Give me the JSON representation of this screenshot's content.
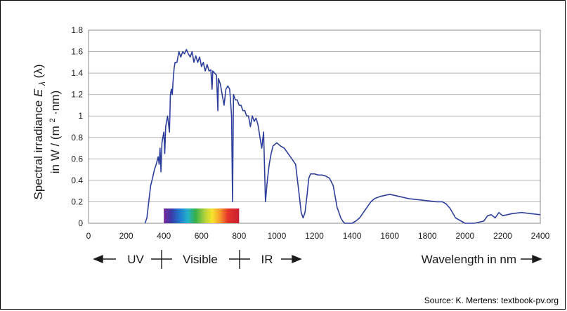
{
  "chart_data": {
    "type": "line",
    "title": "",
    "ylabel_line1": "Spectral irradiance",
    "ylabel_symbol": "E",
    "ylabel_subscript": "λ",
    "ylabel_arg": "(λ)",
    "ylabel_line2_pre": "in W / (m",
    "ylabel_line2_sup": "2",
    "ylabel_line2_post": "·nm)",
    "xlabel": "Wavelength in nm",
    "xlim": [
      0,
      2400
    ],
    "ylim": [
      0,
      1.8
    ],
    "x_ticks": [
      0,
      200,
      400,
      600,
      800,
      1000,
      1200,
      1400,
      1600,
      1800,
      2000,
      2200,
      2400
    ],
    "y_ticks": [
      "0",
      "0.2",
      "0.4",
      "0.6",
      "0.8",
      "1",
      "1.2",
      "1.4",
      "1.6",
      "1.8"
    ],
    "grid": "horizontal",
    "series": [
      {
        "color": "#2e3f9b",
        "x": [
          300,
          310,
          320,
          330,
          340,
          350,
          360,
          370,
          375,
          380,
          385,
          390,
          395,
          400,
          405,
          410,
          415,
          420,
          430,
          435,
          440,
          445,
          450,
          455,
          460,
          470,
          480,
          490,
          500,
          510,
          520,
          530,
          540,
          550,
          560,
          570,
          580,
          590,
          600,
          610,
          620,
          630,
          640,
          650,
          656,
          660,
          670,
          680,
          687,
          690,
          700,
          710,
          720,
          730,
          740,
          750,
          760,
          765,
          770,
          780,
          790,
          800,
          810,
          820,
          830,
          840,
          850,
          860,
          870,
          880,
          890,
          900,
          920,
          930,
          940,
          950,
          960,
          970,
          980,
          1000,
          1020,
          1040,
          1060,
          1080,
          1100,
          1110,
          1120,
          1130,
          1140,
          1150,
          1160,
          1170,
          1180,
          1200,
          1220,
          1240,
          1260,
          1280,
          1300,
          1320,
          1340,
          1350,
          1360,
          1370,
          1380,
          1400,
          1420,
          1440,
          1460,
          1480,
          1500,
          1520,
          1550,
          1600,
          1650,
          1700,
          1750,
          1800,
          1850,
          1880,
          1900,
          1920,
          1950,
          2000,
          2050,
          2100,
          2120,
          2140,
          2160,
          2180,
          2200,
          2250,
          2300,
          2350,
          2400
        ],
        "values": [
          0.0,
          0.05,
          0.2,
          0.35,
          0.42,
          0.5,
          0.55,
          0.62,
          0.55,
          0.7,
          0.48,
          0.75,
          0.8,
          0.85,
          0.65,
          0.9,
          0.95,
          1.0,
          0.85,
          1.2,
          1.25,
          1.2,
          1.35,
          1.45,
          1.5,
          1.5,
          1.6,
          1.55,
          1.6,
          1.58,
          1.62,
          1.58,
          1.55,
          1.6,
          1.5,
          1.56,
          1.5,
          1.55,
          1.46,
          1.5,
          1.42,
          1.48,
          1.42,
          1.43,
          1.25,
          1.42,
          1.4,
          1.38,
          1.05,
          1.35,
          1.3,
          1.2,
          1.1,
          1.25,
          1.28,
          1.25,
          1.0,
          0.2,
          1.2,
          1.15,
          1.15,
          1.1,
          1.1,
          1.05,
          1.05,
          1.0,
          1.0,
          0.9,
          1.0,
          0.95,
          0.98,
          0.92,
          0.7,
          0.85,
          0.2,
          0.4,
          0.55,
          0.65,
          0.72,
          0.75,
          0.72,
          0.7,
          0.65,
          0.6,
          0.55,
          0.4,
          0.25,
          0.1,
          0.05,
          0.1,
          0.25,
          0.42,
          0.46,
          0.46,
          0.45,
          0.45,
          0.44,
          0.42,
          0.35,
          0.15,
          0.05,
          0.02,
          0.0,
          0.0,
          0.0,
          0.0,
          0.02,
          0.05,
          0.1,
          0.15,
          0.2,
          0.23,
          0.25,
          0.27,
          0.25,
          0.23,
          0.22,
          0.21,
          0.2,
          0.2,
          0.18,
          0.14,
          0.05,
          0.0,
          0.0,
          0.02,
          0.07,
          0.08,
          0.05,
          0.1,
          0.07,
          0.09,
          0.1,
          0.09,
          0.08
        ]
      }
    ],
    "visible_band": {
      "from": 400,
      "to": 800
    },
    "bands": {
      "uv": "UV",
      "visible": "Visible",
      "ir": "IR"
    },
    "source": "Source: K. Mertens: textbook-pv.org"
  }
}
